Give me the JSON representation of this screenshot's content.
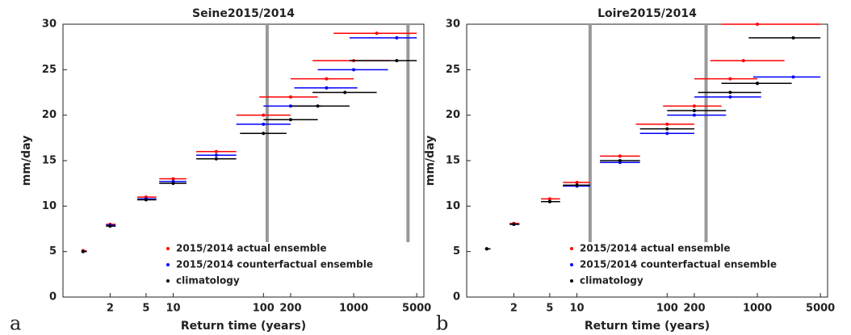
{
  "chart_data": [
    {
      "type": "scatter",
      "panel_label": "a",
      "title": "Seine2015/2014",
      "x_label": "Return time (years)",
      "y_label": "mm/day",
      "xscale": "log",
      "xlim": [
        0.6,
        6000
      ],
      "ylim": [
        0,
        30
      ],
      "xticks": [
        2,
        5,
        10,
        100,
        200,
        1000,
        5000
      ],
      "yticks": [
        0,
        5,
        10,
        15,
        20,
        25,
        30
      ],
      "vlines": [
        110,
        4000
      ],
      "vline_color": "#999999",
      "legend": "lower right",
      "series": [
        {
          "name": "2015/2014 actual ensemble",
          "color": "#ff0000",
          "x": [
            1,
            2,
            5,
            10,
            30,
            100,
            200,
            500,
            1000,
            1800
          ],
          "values": [
            5.1,
            8,
            11,
            13,
            16,
            20,
            22,
            24,
            26,
            29
          ],
          "x_low": [
            1,
            1.8,
            4,
            7,
            18,
            50,
            90,
            200,
            350,
            600
          ],
          "x_high": [
            1.1,
            2.3,
            6.5,
            14,
            50,
            200,
            400,
            1000,
            2500,
            5000
          ]
        },
        {
          "name": "2015/2014 counterfactual ensemble",
          "color": "#0000ff",
          "x": [
            1,
            2,
            5,
            10,
            30,
            100,
            200,
            500,
            1000,
            3000
          ],
          "values": [
            5,
            7.9,
            10.8,
            12.7,
            15.6,
            19,
            21,
            23,
            25,
            28.5
          ],
          "x_low": [
            1,
            1.8,
            4,
            7,
            18,
            50,
            100,
            220,
            400,
            900
          ],
          "x_high": [
            1.1,
            2.3,
            6.5,
            14,
            50,
            200,
            450,
            1100,
            2400,
            5000
          ]
        },
        {
          "name": "climatology",
          "color": "#000000",
          "x": [
            1,
            2,
            5,
            10,
            30,
            100,
            200,
            400,
            800,
            3000
          ],
          "values": [
            5,
            7.8,
            10.7,
            12.5,
            15.2,
            18,
            19.5,
            21,
            22.5,
            26
          ],
          "x_low": [
            1,
            1.8,
            4,
            7,
            18,
            55,
            100,
            200,
            350,
            900
          ],
          "x_high": [
            1.1,
            2.3,
            6.5,
            14,
            50,
            180,
            400,
            900,
            1800,
            5000
          ]
        }
      ]
    },
    {
      "type": "scatter",
      "panel_label": "b",
      "title": "Loire2015/2014",
      "x_label": "Return time (years)",
      "y_label": "mm/day",
      "xscale": "log",
      "xlim": [
        0.6,
        6000
      ],
      "ylim": [
        0,
        30
      ],
      "xticks": [
        2,
        5,
        10,
        100,
        200,
        1000,
        5000
      ],
      "yticks": [
        0,
        5,
        10,
        15,
        20,
        25,
        30
      ],
      "vlines": [
        14,
        270
      ],
      "vline_color": "#999999",
      "legend": "lower right",
      "series": [
        {
          "name": "2015/2014 actual ensemble",
          "color": "#ff0000",
          "x": [
            1,
            2,
            5,
            10,
            30,
            100,
            200,
            500,
            700,
            1000
          ],
          "values": [
            5.3,
            8.1,
            10.8,
            12.6,
            15.5,
            19,
            21,
            24,
            26,
            30
          ],
          "x_low": [
            1,
            1.8,
            4,
            7,
            18,
            45,
            90,
            200,
            300,
            400
          ],
          "x_high": [
            1.1,
            2.3,
            6.5,
            14,
            50,
            200,
            400,
            1000,
            2000,
            5000
          ]
        },
        {
          "name": "2015/2014 counterfactual ensemble",
          "color": "#0000ff",
          "x": [
            1,
            2,
            5,
            10,
            30,
            100,
            200,
            500,
            1000,
            2500
          ],
          "values": [
            5.3,
            8,
            10.5,
            12.2,
            14.8,
            18,
            20,
            22,
            23.5,
            24.2
          ],
          "x_low": [
            1,
            1.8,
            4,
            7,
            18,
            50,
            100,
            200,
            400,
            900
          ],
          "x_high": [
            1.1,
            2.3,
            6.5,
            14,
            50,
            200,
            450,
            1100,
            2400,
            5000
          ]
        },
        {
          "name": "climatology",
          "color": "#000000",
          "x": [
            1,
            2,
            5,
            10,
            30,
            100,
            200,
            500,
            1000,
            2500
          ],
          "values": [
            5.3,
            8,
            10.5,
            12.3,
            15,
            18.5,
            20.5,
            22.5,
            23.5,
            28.5
          ],
          "x_low": [
            1,
            1.8,
            4,
            7,
            18,
            50,
            100,
            220,
            400,
            800
          ],
          "x_high": [
            1.1,
            2.3,
            6.5,
            14,
            50,
            200,
            450,
            1100,
            2400,
            5000
          ]
        }
      ]
    }
  ]
}
